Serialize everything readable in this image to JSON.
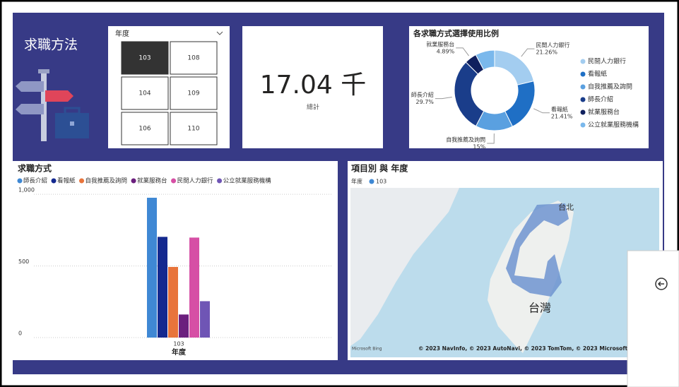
{
  "header": {
    "title": "求職方法"
  },
  "slicer": {
    "title": "年度",
    "options": [
      "103",
      "108",
      "104",
      "109",
      "106",
      "110"
    ],
    "selected": 0
  },
  "card": {
    "value": "17.04 千",
    "label": "總計"
  },
  "map": {
    "title": "項目別 與 年度",
    "legend_title": "年度",
    "legend_item": "103",
    "labels": [
      "台北",
      "台灣"
    ],
    "attribution": "© 2023 NavInfo, © 2023 AutoNavi, © 2023 TomTom, © 2023 Microsoft Corp",
    "logo": "Microsoft Bing"
  },
  "chart_data": [
    {
      "type": "pie",
      "title": "各求職方式選擇使用比例",
      "donut": true,
      "legend": "right",
      "categories": [
        "民間人力銀行",
        "看報紙",
        "自我推薦及詢問",
        "師長介紹",
        "就業服務台",
        "公立就業服務機構"
      ],
      "values": [
        21.26,
        21.41,
        15,
        29.7,
        4.89,
        7.74
      ],
      "value_labels": [
        "21.26%",
        "21.41%",
        "15%",
        "29.7%",
        "4.89%",
        null
      ],
      "colors": [
        "#a3cdf0",
        "#1f6fc5",
        "#5aa0e0",
        "#1a3d8a",
        "#10205e",
        "#7ab8ec"
      ]
    },
    {
      "type": "bar",
      "title": "求職方式",
      "categories": [
        "103"
      ],
      "xlabel": "年度",
      "legend": "top",
      "grid": true,
      "ylim": [
        0,
        1050
      ],
      "yticks": [
        0,
        500,
        {
          "value": 1000,
          "label": "1,000"
        }
      ],
      "series": [
        {
          "name": "師長介紹",
          "color": "#3f88d4",
          "values": [
            976
          ]
        },
        {
          "name": "看報紙",
          "color": "#14298f",
          "values": [
            703
          ]
        },
        {
          "name": "自我推薦及詢問",
          "color": "#e8743b",
          "values": [
            493
          ]
        },
        {
          "name": "就業服務台",
          "color": "#6b1f7e",
          "values": [
            161
          ]
        },
        {
          "name": "民間人力銀行",
          "color": "#d64fa5",
          "values": [
            698
          ]
        },
        {
          "name": "公立就業服務機構",
          "color": "#6f55b5",
          "values": [
            254
          ]
        }
      ]
    }
  ]
}
